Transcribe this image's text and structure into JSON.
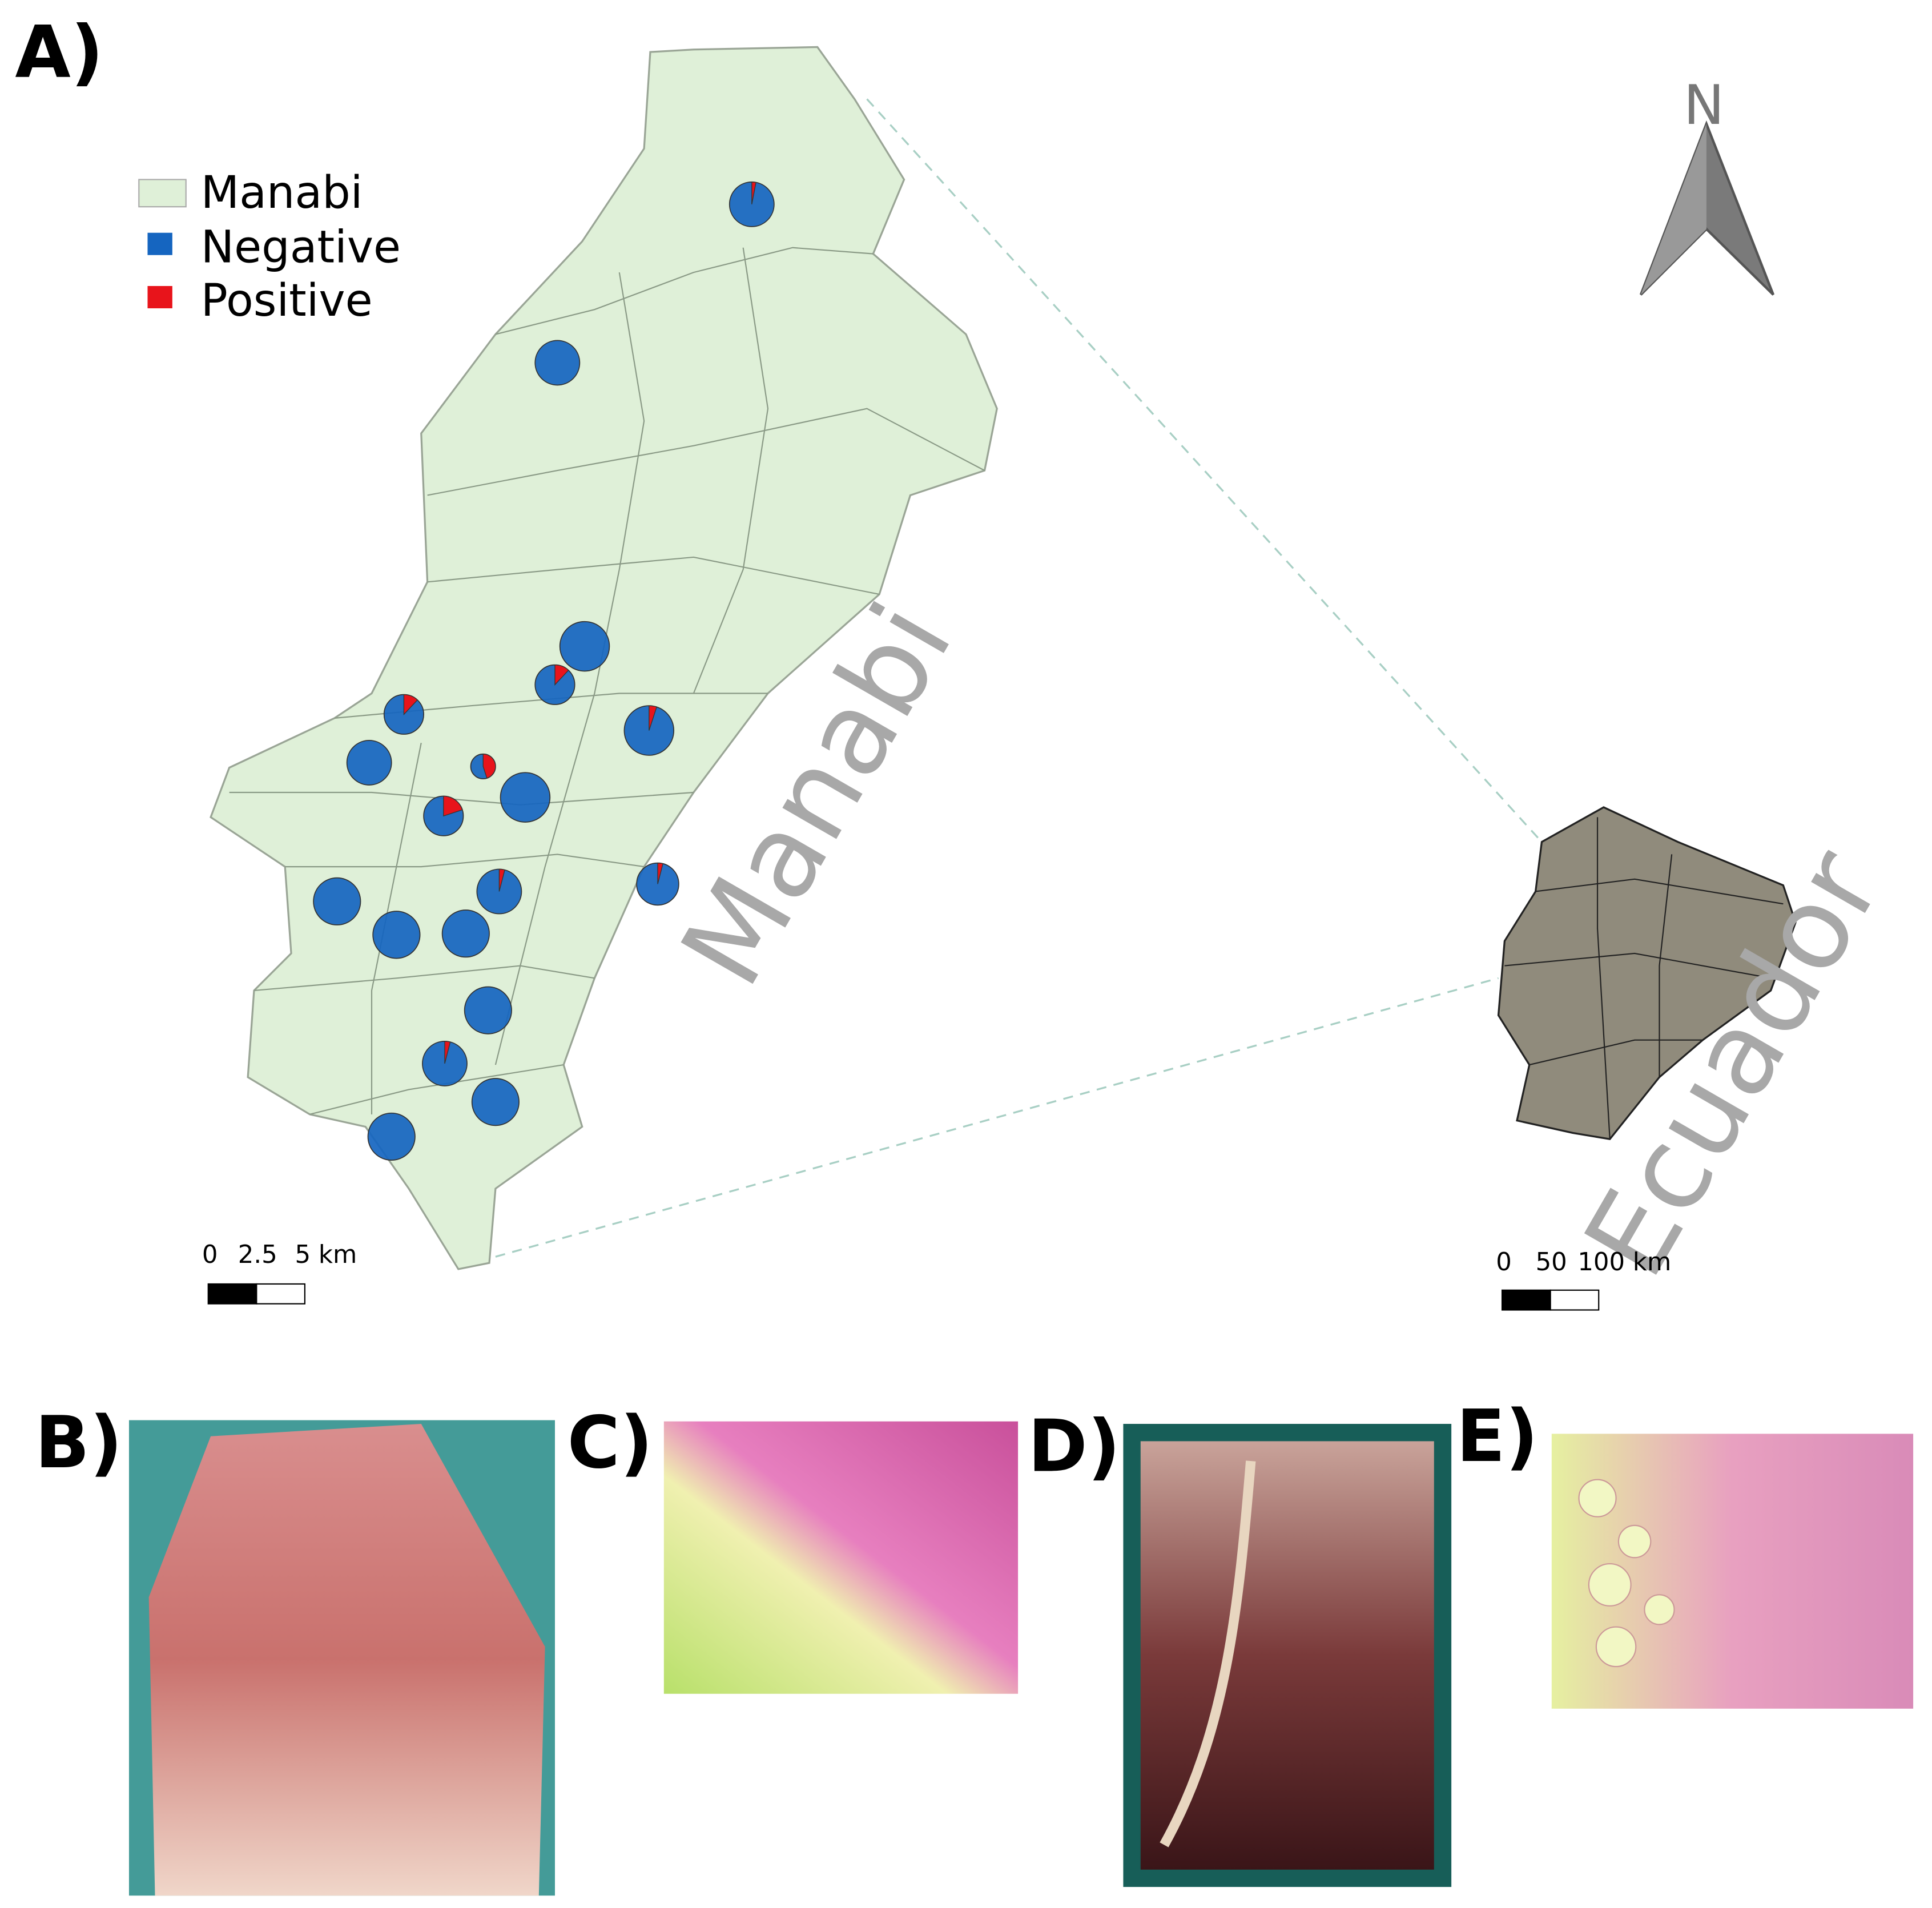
{
  "panel_labels": [
    "A)",
    "B)",
    "C)",
    "D)",
    "E)"
  ],
  "legend": [
    "Manabi",
    "Negative",
    "Positive"
  ],
  "map_labels": {
    "province": "Manabi",
    "country": "Ecuador"
  },
  "north": "N",
  "scale_local": [
    "0",
    "2.5",
    "5 km"
  ],
  "scale_country": [
    "0",
    "50",
    "100 km"
  ],
  "colors": {
    "province": "#dff0d8",
    "country": "#908b7c",
    "negative": "#1565c0",
    "positive": "#e8141b"
  },
  "sites": {
    "positive_percent": [
      3,
      0,
      0,
      12,
      12,
      5,
      0,
      45,
      0,
      20,
      4,
      4,
      0,
      0,
      0,
      0,
      4,
      0,
      0
    ]
  }
}
